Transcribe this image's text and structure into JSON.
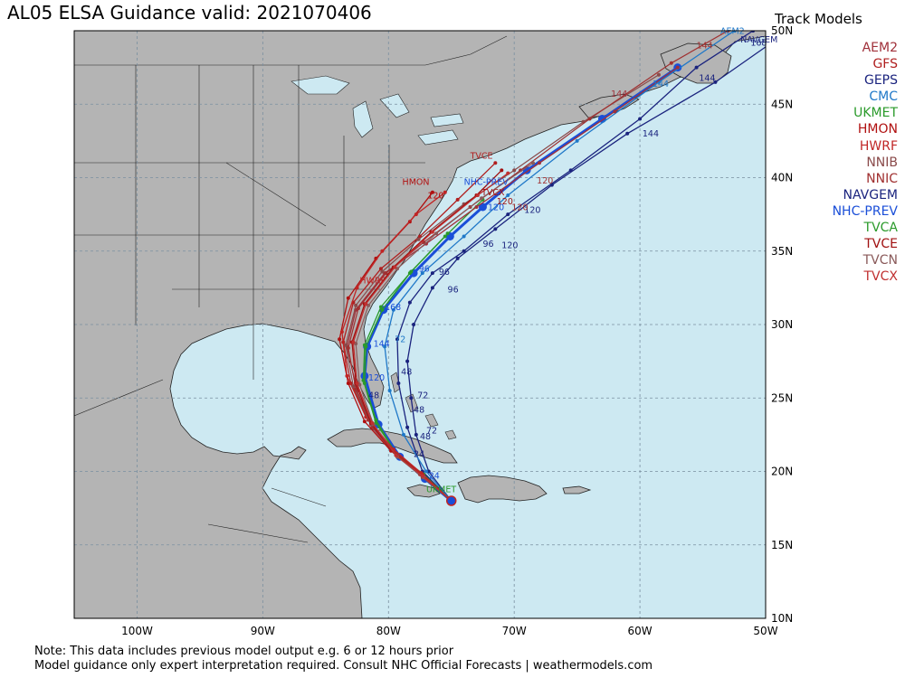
{
  "title": "AL05 ELSA Guidance valid: 2021070406",
  "legend_title": "Track Models",
  "models": [
    {
      "name": "AEM2",
      "color": "#a0303a"
    },
    {
      "name": "GFS",
      "color": "#b02020"
    },
    {
      "name": "GEPS",
      "color": "#1a237e"
    },
    {
      "name": "CMC",
      "color": "#1f78c8"
    },
    {
      "name": "UKMET",
      "color": "#2a9a2a"
    },
    {
      "name": "HMON",
      "color": "#b01010"
    },
    {
      "name": "HWRF",
      "color": "#c02525"
    },
    {
      "name": "NNIB",
      "color": "#8a4a4a"
    },
    {
      "name": "NNIC",
      "color": "#a03030"
    },
    {
      "name": "NAVGEM",
      "color": "#1a237e"
    },
    {
      "name": "NHC-PREV",
      "color": "#1a4ed8"
    },
    {
      "name": "TVCA",
      "color": "#2a9a2a"
    },
    {
      "name": "TVCE",
      "color": "#a01010"
    },
    {
      "name": "TVCN",
      "color": "#8a5a5a"
    },
    {
      "name": "TVCX",
      "color": "#c03030"
    }
  ],
  "axes": {
    "lon_labels": [
      "100W",
      "90W",
      "80W",
      "70W",
      "60W",
      "50W"
    ],
    "lat_labels": [
      "10N",
      "15N",
      "20N",
      "25N",
      "30N",
      "35N",
      "40N",
      "45N",
      "50N"
    ],
    "lon_range": [
      -105,
      -50
    ],
    "lat_range": [
      10,
      50
    ],
    "grid": true
  },
  "colors": {
    "land": "#b4b4b4",
    "ocean": "#cde9f2",
    "border": "#222222"
  },
  "tracks": [
    {
      "model": "NHC-PREV",
      "color": "#1a4ed8",
      "width": 3,
      "points": [
        [
          -75.0,
          18.0
        ],
        [
          -77.1,
          19.5
        ],
        [
          -79.1,
          21.0
        ],
        [
          -80.8,
          23.2
        ],
        [
          -81.9,
          26.5
        ],
        [
          -81.7,
          28.5
        ],
        [
          -80.4,
          31.0
        ],
        [
          -78.0,
          33.5
        ],
        [
          -75.1,
          36.0
        ],
        [
          -72.5,
          38.0
        ],
        [
          -69.0,
          40.5
        ],
        [
          -63.0,
          44.0
        ],
        [
          -57.0,
          47.5
        ]
      ],
      "labels": [
        {
          "p": [
            -76.8,
            19.5
          ],
          "t": "24"
        },
        {
          "p": [
            -81.6,
            26.2
          ],
          "t": "120"
        },
        {
          "p": [
            -80.3,
            31.0
          ],
          "t": "168"
        },
        {
          "p": [
            -81.2,
            28.5
          ],
          "t": "144"
        },
        {
          "p": [
            -72.1,
            37.8
          ],
          "t": "120"
        },
        {
          "p": [
            -77.6,
            33.6
          ],
          "t": "96"
        }
      ]
    },
    {
      "model": "GEPS",
      "color": "#1a237e",
      "width": 1.3,
      "points": [
        [
          -75.0,
          18.0
        ],
        [
          -76.8,
          20.0
        ],
        [
          -77.8,
          22.5
        ],
        [
          -78.2,
          25.0
        ],
        [
          -78.5,
          27.5
        ],
        [
          -78.0,
          30.0
        ],
        [
          -76.5,
          32.5
        ],
        [
          -74.5,
          34.5
        ],
        [
          -71.5,
          36.5
        ],
        [
          -67.0,
          39.5
        ],
        [
          -61.0,
          43.0
        ],
        [
          -54.0,
          46.5
        ],
        [
          -49.0,
          49.5
        ]
      ],
      "labels": [
        {
          "p": [
            -77.5,
            22.2
          ],
          "t": "48"
        },
        {
          "p": [
            -77.7,
            25.0
          ],
          "t": "72"
        },
        {
          "p": [
            -75.3,
            32.2
          ],
          "t": "96"
        },
        {
          "p": [
            -71.0,
            35.2
          ],
          "t": "120"
        },
        {
          "p": [
            -59.8,
            42.8
          ],
          "t": "144"
        }
      ]
    },
    {
      "model": "NAVGEM",
      "color": "#1a237e",
      "width": 1.3,
      "points": [
        [
          -75.0,
          18.0
        ],
        [
          -77.3,
          20.0
        ],
        [
          -78.5,
          23.0
        ],
        [
          -79.2,
          26.0
        ],
        [
          -79.3,
          29.0
        ],
        [
          -78.3,
          31.5
        ],
        [
          -76.5,
          33.5
        ],
        [
          -74.0,
          35.0
        ],
        [
          -70.5,
          37.5
        ],
        [
          -65.5,
          40.5
        ],
        [
          -60.0,
          44.0
        ],
        [
          -55.5,
          47.5
        ],
        [
          -51.0,
          50.0
        ]
      ],
      "labels": [
        {
          "p": [
            -79.0,
            26.6
          ],
          "t": "48"
        },
        {
          "p": [
            -76.0,
            33.4
          ],
          "t": "96"
        },
        {
          "p": [
            -72.5,
            35.3
          ],
          "t": "96"
        },
        {
          "p": [
            -69.2,
            37.6
          ],
          "t": "120"
        },
        {
          "p": [
            -55.3,
            46.6
          ],
          "t": "144"
        },
        {
          "p": [
            -51.2,
            49.0
          ],
          "t": "168"
        }
      ]
    },
    {
      "model": "CMC",
      "color": "#1f78c8",
      "width": 1.3,
      "points": [
        [
          -75.0,
          18.0
        ],
        [
          -77.0,
          20.0
        ],
        [
          -78.8,
          22.5
        ],
        [
          -79.9,
          25.5
        ],
        [
          -80.3,
          28.5
        ],
        [
          -79.6,
          31.0
        ],
        [
          -77.3,
          33.5
        ],
        [
          -74.0,
          36.0
        ],
        [
          -70.5,
          38.8
        ],
        [
          -65.0,
          42.5
        ],
        [
          -58.5,
          46.5
        ],
        [
          -52.5,
          50.0
        ]
      ],
      "labels": [
        {
          "p": [
            -79.5,
            28.8
          ],
          "t": "72"
        },
        {
          "p": [
            -59.0,
            46.2
          ],
          "t": "144"
        }
      ]
    },
    {
      "model": "UKMET",
      "color": "#2a9a2a",
      "width": 1.3,
      "points": [
        [
          -75.0,
          18.0
        ],
        [
          -77.2,
          19.8
        ],
        [
          -79.4,
          21.2
        ],
        [
          -81.0,
          23.5
        ],
        [
          -81.9,
          26.0
        ],
        [
          -81.8,
          28.5
        ],
        [
          -80.5,
          31.0
        ],
        [
          -78.3,
          33.5
        ],
        [
          -75.5,
          36.0
        ],
        [
          -72.5,
          38.5
        ]
      ],
      "labels": [
        {
          "p": [
            -77.0,
            18.6
          ],
          "t": "UKMET"
        }
      ]
    },
    {
      "model": "TVCA",
      "color": "#2a9a2a",
      "width": 1.3,
      "points": [
        [
          -75.0,
          18.0
        ],
        [
          -77.1,
          19.6
        ],
        [
          -79.2,
          21.0
        ],
        [
          -81.0,
          23.3
        ],
        [
          -82.0,
          26.2
        ],
        [
          -81.9,
          28.6
        ],
        [
          -80.6,
          31.2
        ],
        [
          -78.2,
          33.6
        ],
        [
          -75.3,
          36.2
        ]
      ],
      "labels": []
    },
    {
      "model": "AEM2",
      "color": "#a0303a",
      "width": 1.3,
      "points": [
        [
          -75.0,
          18.0
        ],
        [
          -77.2,
          19.7
        ],
        [
          -79.3,
          21.0
        ],
        [
          -81.3,
          23.0
        ],
        [
          -82.5,
          25.5
        ],
        [
          -83.3,
          28.5
        ],
        [
          -82.6,
          31.0
        ],
        [
          -80.3,
          33.5
        ],
        [
          -77.0,
          35.5
        ],
        [
          -73.0,
          38.0
        ],
        [
          -68.0,
          41.0
        ],
        [
          -62.0,
          44.5
        ],
        [
          -57.0,
          47.5
        ]
      ],
      "labels": [
        {
          "p": [
            -62.3,
            45.5
          ],
          "t": "144"
        }
      ]
    },
    {
      "model": "GFS",
      "color": "#b02020",
      "width": 1.3,
      "points": [
        [
          -75.0,
          18.0
        ],
        [
          -77.3,
          19.8
        ],
        [
          -79.5,
          21.3
        ],
        [
          -81.6,
          23.5
        ],
        [
          -83.0,
          26.0
        ],
        [
          -83.6,
          28.8
        ],
        [
          -82.8,
          31.5
        ],
        [
          -80.6,
          33.8
        ],
        [
          -77.5,
          36.0
        ],
        [
          -74.5,
          38.5
        ],
        [
          -71.5,
          41.0
        ]
      ],
      "labels": [
        {
          "p": [
            -73.5,
            41.3
          ],
          "t": "TVCE"
        }
      ]
    },
    {
      "model": "HMON",
      "color": "#b01010",
      "width": 1.3,
      "points": [
        [
          -75.0,
          18.0
        ],
        [
          -77.5,
          19.8
        ],
        [
          -79.8,
          21.4
        ],
        [
          -81.9,
          23.4
        ],
        [
          -83.2,
          26.0
        ],
        [
          -83.9,
          29.0
        ],
        [
          -83.2,
          31.8
        ],
        [
          -81.0,
          34.5
        ],
        [
          -78.3,
          37.0
        ],
        [
          -76.5,
          39.0
        ]
      ],
      "labels": [
        {
          "p": [
            -78.9,
            39.5
          ],
          "t": "HMON"
        },
        {
          "p": [
            -76.9,
            38.6
          ],
          "t": "120"
        }
      ]
    },
    {
      "model": "HWRF",
      "color": "#c02525",
      "width": 1.3,
      "points": [
        [
          -75.0,
          18.0
        ],
        [
          -77.4,
          19.9
        ],
        [
          -79.6,
          21.5
        ],
        [
          -81.8,
          23.7
        ],
        [
          -83.3,
          26.5
        ],
        [
          -83.7,
          29.5
        ],
        [
          -82.5,
          32.5
        ],
        [
          -80.5,
          35.0
        ],
        [
          -77.8,
          37.5
        ],
        [
          -75.5,
          39.0
        ]
      ],
      "labels": [
        {
          "p": [
            -82.3,
            32.8
          ],
          "t": "HWRF"
        }
      ]
    },
    {
      "model": "NNIB",
      "color": "#8a4a4a",
      "width": 1.2,
      "points": [
        [
          -75.0,
          18.0
        ],
        [
          -77.3,
          19.6
        ],
        [
          -79.4,
          21.1
        ],
        [
          -81.4,
          23.2
        ],
        [
          -82.8,
          25.8
        ],
        [
          -83.4,
          28.6
        ],
        [
          -82.6,
          31.3
        ],
        [
          -80.5,
          33.6
        ],
        [
          -77.6,
          35.8
        ],
        [
          -74.0,
          38.2
        ],
        [
          -70.0,
          40.5
        ],
        [
          -64.5,
          43.8
        ],
        [
          -58.5,
          47.0
        ]
      ],
      "labels": []
    },
    {
      "model": "NNIC",
      "color": "#a03030",
      "width": 1.2,
      "points": [
        [
          -75.0,
          18.0
        ],
        [
          -77.2,
          19.6
        ],
        [
          -79.3,
          21.0
        ],
        [
          -81.2,
          23.0
        ],
        [
          -82.6,
          25.6
        ],
        [
          -83.2,
          28.4
        ],
        [
          -82.4,
          31.1
        ],
        [
          -80.2,
          33.5
        ],
        [
          -77.2,
          35.6
        ],
        [
          -73.5,
          38.0
        ],
        [
          -69.5,
          40.5
        ],
        [
          -64.0,
          44.0
        ],
        [
          -57.5,
          47.8
        ],
        [
          -53.0,
          50.0
        ]
      ],
      "labels": [
        {
          "p": [
            -55.5,
            48.8
          ],
          "t": "144"
        }
      ]
    },
    {
      "model": "TVCE",
      "color": "#a01010",
      "width": 1.3,
      "points": [
        [
          -75.0,
          18.0
        ],
        [
          -77.3,
          19.7
        ],
        [
          -79.4,
          21.1
        ],
        [
          -81.4,
          23.3
        ],
        [
          -82.6,
          26.0
        ],
        [
          -82.9,
          28.8
        ],
        [
          -81.9,
          31.4
        ],
        [
          -79.6,
          33.9
        ],
        [
          -76.6,
          36.3
        ],
        [
          -73.0,
          38.8
        ],
        [
          -71.0,
          40.5
        ]
      ],
      "labels": [
        {
          "p": [
            -72.6,
            38.8
          ],
          "t": "TVCX"
        },
        {
          "p": [
            -71.4,
            38.2
          ],
          "t": "120"
        }
      ]
    },
    {
      "model": "TVCN",
      "color": "#8a5a5a",
      "width": 1.2,
      "points": [
        [
          -75.0,
          18.0
        ],
        [
          -77.2,
          19.6
        ],
        [
          -79.3,
          21.0
        ],
        [
          -81.2,
          23.2
        ],
        [
          -82.3,
          25.9
        ],
        [
          -82.6,
          28.7
        ],
        [
          -81.6,
          31.3
        ],
        [
          -79.3,
          33.8
        ],
        [
          -76.2,
          36.2
        ],
        [
          -72.6,
          38.6
        ],
        [
          -68.5,
          41.0
        ]
      ],
      "labels": []
    },
    {
      "model": "TVCX",
      "color": "#c03030",
      "width": 1.2,
      "points": [
        [
          -75.0,
          18.0
        ],
        [
          -77.3,
          19.7
        ],
        [
          -79.4,
          21.1
        ],
        [
          -81.3,
          23.3
        ],
        [
          -82.5,
          26.0
        ],
        [
          -82.8,
          28.8
        ],
        [
          -81.8,
          31.4
        ],
        [
          -79.5,
          33.9
        ],
        [
          -76.5,
          36.3
        ],
        [
          -72.9,
          38.8
        ],
        [
          -70.5,
          40.3
        ]
      ],
      "labels": []
    }
  ],
  "track_labels_misc": [
    {
      "p": [
        -74.0,
        39.5
      ],
      "t": "NHC-PREV",
      "color": "#1a4ed8"
    },
    {
      "p": [
        -53.6,
        49.8
      ],
      "t": "AEM2",
      "color": "#1f78c8"
    },
    {
      "p": [
        -52.0,
        49.2
      ],
      "t": "NAVGEM",
      "color": "#1a237e"
    },
    {
      "p": [
        -70.2,
        37.8
      ],
      "t": "120",
      "color": "#a03030"
    },
    {
      "p": [
        -68.2,
        39.6
      ],
      "t": "120",
      "color": "#a03030"
    },
    {
      "p": [
        -77.0,
        22.6
      ],
      "t": "72",
      "color": "#1a237e"
    },
    {
      "p": [
        -78.0,
        24.0
      ],
      "t": "48",
      "color": "#1a237e"
    },
    {
      "p": [
        -78.0,
        21.0
      ],
      "t": "24",
      "color": "#1a237e"
    },
    {
      "p": [
        -81.6,
        25.0
      ],
      "t": "48",
      "color": "#1a237e"
    }
  ],
  "notes": [
    "Note: This data includes previous model output e.g. 6 or 12 hours prior",
    "Model guidance only expert interpretation required. Consult NHC Official Forecasts | weathermodels.com"
  ]
}
